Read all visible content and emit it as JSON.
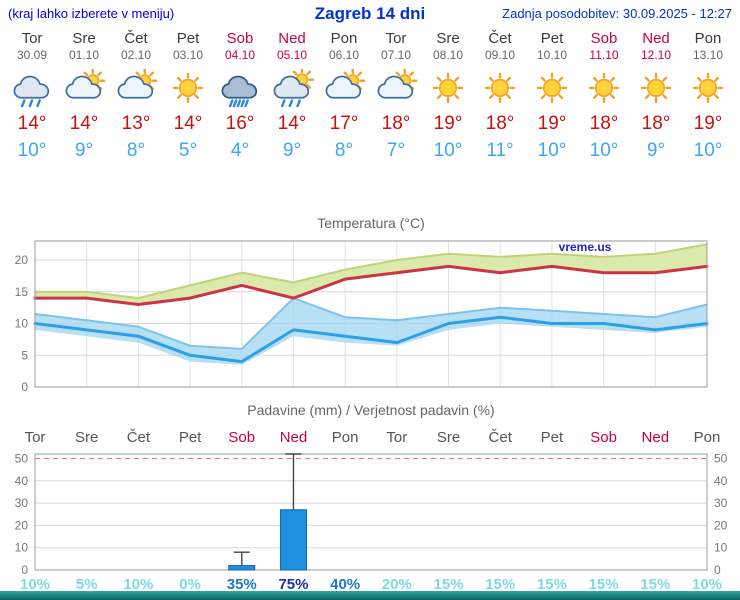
{
  "header": {
    "left_note": "(kraj lahko izberete v meniju)",
    "title": "Zagreb 14 dni",
    "updated_label": "Zadnja posodobitev: 30.09.2025 - 12:27"
  },
  "colors": {
    "header_blue": "#0033cc",
    "weekend_red": "#cc0044",
    "weekday_gray": "#555555",
    "temp_max_red": "#cc1111",
    "temp_min_blue": "#3da5f4",
    "line_max": "#cc3344",
    "line_min": "#2e9fe6",
    "band_max": "#d9e9a8",
    "band_max_edge": "#bfd47a",
    "band_min": "#a6d8f2",
    "band_min_edge": "#7ec3ea",
    "bar_blue": "#1f8fe0",
    "bar_edge": "#1266a8",
    "prob_low": "#7fd8e8",
    "prob_mid": "#1f78c8",
    "prob_high": "#1b2fa8",
    "grid": "#d8d8d8",
    "frame": "#999999",
    "dashed_red": "#ee7777",
    "watermark_blue": "#2222cc"
  },
  "days": [
    {
      "name": "Tor",
      "date": "30.09",
      "weekend": false,
      "icon": "rain",
      "tmax": "14°",
      "tmin": "10°"
    },
    {
      "name": "Sre",
      "date": "01.10",
      "weekend": false,
      "icon": "sun-cloud",
      "tmax": "14°",
      "tmin": "9°"
    },
    {
      "name": "Čet",
      "date": "02.10",
      "weekend": false,
      "icon": "sun-cloud",
      "tmax": "13°",
      "tmin": "8°"
    },
    {
      "name": "Pet",
      "date": "03.10",
      "weekend": false,
      "icon": "sun",
      "tmax": "14°",
      "tmin": "5°"
    },
    {
      "name": "Sob",
      "date": "04.10",
      "weekend": true,
      "icon": "rain-heavy",
      "tmax": "16°",
      "tmin": "4°"
    },
    {
      "name": "Ned",
      "date": "05.10",
      "weekend": true,
      "icon": "rain-sun",
      "tmax": "14°",
      "tmin": "9°"
    },
    {
      "name": "Pon",
      "date": "06.10",
      "weekend": false,
      "icon": "sun-cloud",
      "tmax": "17°",
      "tmin": "8°"
    },
    {
      "name": "Tor",
      "date": "07.10",
      "weekend": false,
      "icon": "sun-cloud",
      "tmax": "18°",
      "tmin": "7°"
    },
    {
      "name": "Sre",
      "date": "08.10",
      "weekend": false,
      "icon": "sun",
      "tmax": "19°",
      "tmin": "10°"
    },
    {
      "name": "Čet",
      "date": "09.10",
      "weekend": false,
      "icon": "sun",
      "tmax": "18°",
      "tmin": "11°"
    },
    {
      "name": "Pet",
      "date": "10.10",
      "weekend": false,
      "icon": "sun",
      "tmax": "19°",
      "tmin": "10°"
    },
    {
      "name": "Sob",
      "date": "11.10",
      "weekend": true,
      "icon": "sun",
      "tmax": "18°",
      "tmin": "10°"
    },
    {
      "name": "Ned",
      "date": "12.10",
      "weekend": true,
      "icon": "sun",
      "tmax": "18°",
      "tmin": "9°"
    },
    {
      "name": "Pon",
      "date": "13.10",
      "weekend": false,
      "icon": "sun",
      "tmax": "19°",
      "tmin": "10°"
    }
  ],
  "chart_data": {
    "temperature": {
      "type": "line",
      "title": "Temperatura (°C)",
      "watermark": "vreme.us",
      "ylim": [
        0,
        23
      ],
      "yticks": [
        0,
        5,
        10,
        15,
        20
      ],
      "categories": [
        "30.09",
        "01.10",
        "02.10",
        "03.10",
        "04.10",
        "05.10",
        "06.10",
        "07.10",
        "08.10",
        "09.10",
        "10.10",
        "11.10",
        "12.10",
        "13.10"
      ],
      "tmax": [
        14,
        14,
        13,
        14,
        16,
        14,
        17,
        18,
        19,
        18,
        19,
        18,
        18,
        19
      ],
      "tmax_band_upper": [
        15,
        15,
        14,
        16,
        18,
        16.5,
        18.5,
        20,
        21,
        20.5,
        21,
        20.5,
        21,
        22.5
      ],
      "tmin": [
        10,
        9,
        8,
        5,
        4,
        9,
        8,
        7,
        10,
        11,
        10,
        10,
        9,
        10
      ],
      "tmin_band_upper": [
        11.5,
        10.5,
        9.5,
        6.5,
        6,
        14,
        11,
        10.5,
        11.5,
        12.5,
        12,
        11.5,
        11,
        13
      ],
      "tmin_band_lower": [
        9,
        8,
        7,
        4,
        3.5,
        8,
        7,
        6.5,
        9,
        10,
        9.5,
        9,
        8.5,
        9.5
      ]
    },
    "precipitation": {
      "type": "bar",
      "title": "Padavine (mm) / Verjetnost padavin (%)",
      "ylim": [
        0,
        52
      ],
      "yticks": [
        0,
        10,
        20,
        30,
        40,
        50
      ],
      "day_labels": [
        "Tor",
        "Sre",
        "Čet",
        "Pet",
        "Sob",
        "Ned",
        "Pon",
        "Tor",
        "Sre",
        "Čet",
        "Pet",
        "Sob",
        "Ned",
        "Pon"
      ],
      "values_mm": [
        0,
        0,
        0,
        0,
        2,
        27,
        0,
        0,
        0,
        0,
        0,
        0,
        0,
        0
      ],
      "whisker_max": [
        0,
        0,
        0,
        0,
        8,
        52,
        0,
        0,
        0,
        0,
        0,
        0,
        0,
        0
      ],
      "probabilities": [
        10,
        5,
        10,
        0,
        35,
        75,
        40,
        20,
        15,
        15,
        15,
        15,
        15,
        10
      ],
      "prob_suffix": "%"
    }
  }
}
